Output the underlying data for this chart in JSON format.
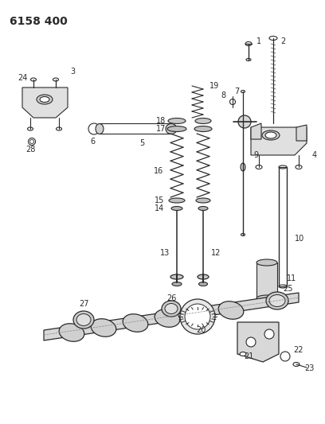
{
  "title": "6158 400",
  "bg_color": "#ffffff",
  "line_color": "#2a2a2a",
  "title_fontsize": 10,
  "label_fontsize": 7,
  "fig_width": 4.08,
  "fig_height": 5.33,
  "dpi": 100
}
